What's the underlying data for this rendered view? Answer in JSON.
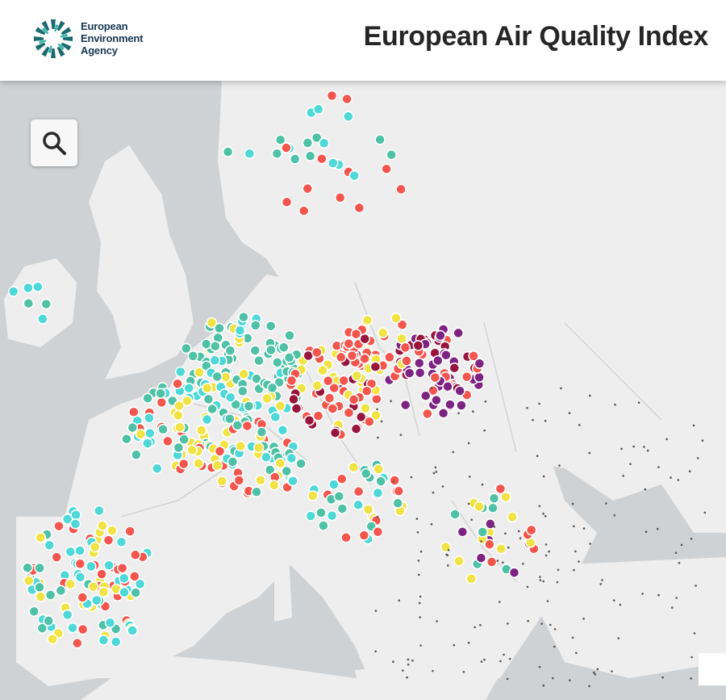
{
  "header": {
    "logo": {
      "line1": "European",
      "line2": "Environment",
      "line3": "Agency"
    },
    "title": "European Air Quality Index"
  },
  "controls": {
    "search_icon": "search-icon"
  },
  "colors": {
    "sea": "#cfd2d4",
    "land": "#eeeeee",
    "border": "#d7d7d7",
    "good": "#4fc1a6",
    "fair": "#4ed8d8",
    "moderate": "#f1e344",
    "poor": "#f4564e",
    "very_poor": "#97153c",
    "extremely_poor": "#7d2381",
    "brand": "#1a6a6e"
  }
}
